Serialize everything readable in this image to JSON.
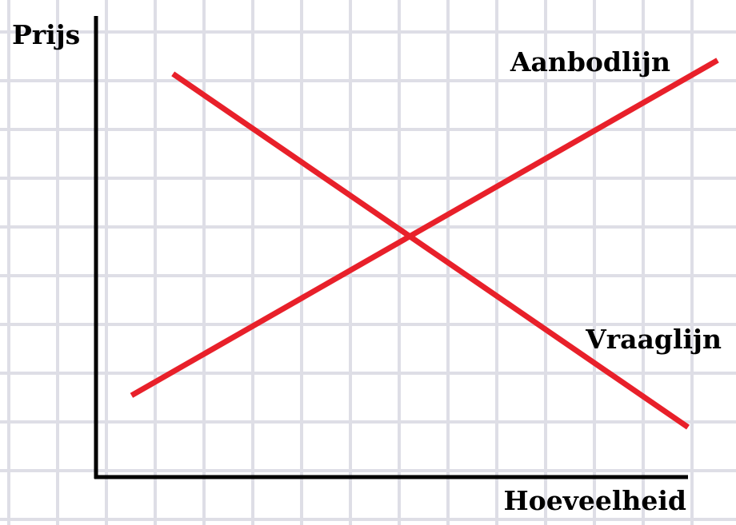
{
  "chart_data": {
    "type": "line",
    "title": "",
    "ylabel": "Prijs",
    "xlabel": "Hoeveelheid",
    "grid": true,
    "xlim": [
      0,
      10
    ],
    "ylim": [
      0,
      10
    ],
    "series": [
      {
        "name": "Aanbodlijn",
        "x": [
          0.6,
          10.5
        ],
        "y": [
          1.8,
          9.2
        ]
      },
      {
        "name": "Vraaglijn",
        "x": [
          1.3,
          10.0
        ],
        "y": [
          8.9,
          1.1
        ]
      }
    ]
  },
  "colors": {
    "line": "#e8202a",
    "axis": "#000000",
    "grid": "#dedee6",
    "background": "#ffffff"
  }
}
